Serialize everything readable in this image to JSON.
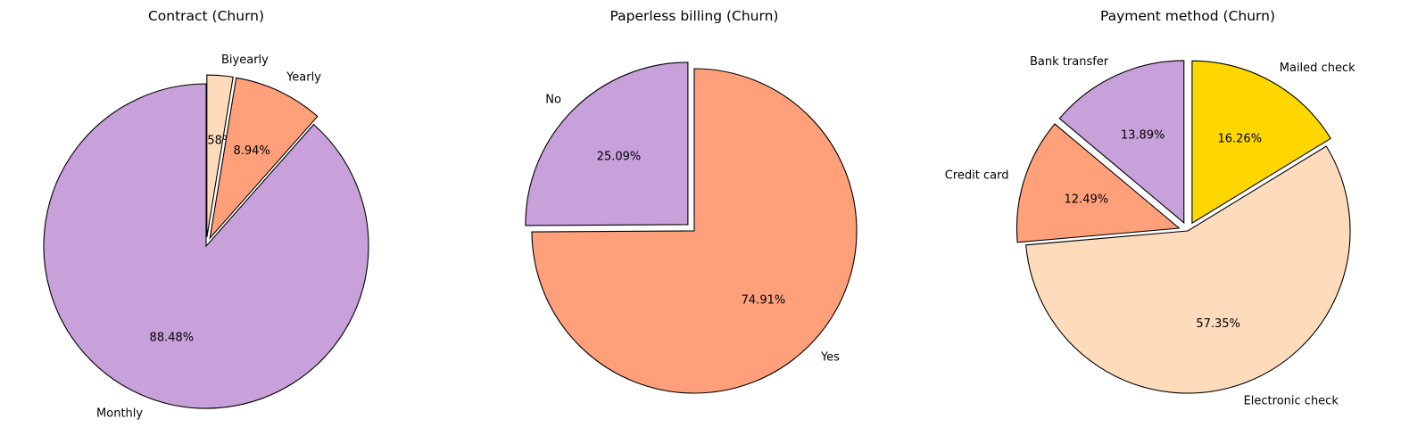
{
  "chart_data": [
    {
      "type": "pie",
      "title": "Contract (Churn)",
      "start_angle_deg": 90,
      "direction": "clockwise",
      "slices": [
        {
          "label": "Biyearly",
          "value": 2.58,
          "pct_text": "2.58%",
          "color": "#FDDBBB",
          "exploded": true
        },
        {
          "label": "Yearly",
          "value": 8.94,
          "pct_text": "8.94%",
          "color": "#FFA07A",
          "exploded": true
        },
        {
          "label": "Monthly",
          "value": 88.48,
          "pct_text": "88.48%",
          "color": "#C8A0DA",
          "exploded": false
        }
      ]
    },
    {
      "type": "pie",
      "title": "Paperless billing (Churn)",
      "start_angle_deg": 90,
      "direction": "counterclockwise",
      "slices": [
        {
          "label": "No",
          "value": 25.09,
          "pct_text": "25.09%",
          "color": "#C8A0DA",
          "exploded": true
        },
        {
          "label": "Yes",
          "value": 74.91,
          "pct_text": "74.91%",
          "color": "#FFA07A",
          "exploded": false
        }
      ]
    },
    {
      "type": "pie",
      "title": "Payment method (Churn)",
      "start_angle_deg": 90,
      "direction": "counterclockwise",
      "slices": [
        {
          "label": "Bank transfer",
          "value": 13.89,
          "pct_text": "13.89%",
          "color": "#C8A0DA",
          "exploded": true
        },
        {
          "label": "Credit card",
          "value": 12.49,
          "pct_text": "12.49%",
          "color": "#FFA07A",
          "exploded": true
        },
        {
          "label": "Electronic check",
          "value": 57.35,
          "pct_text": "57.35%",
          "color": "#FDDBBB",
          "exploded": false
        },
        {
          "label": "Mailed check",
          "value": 16.26,
          "pct_text": "16.26%",
          "color": "#FFD700",
          "exploded": true
        }
      ]
    }
  ]
}
